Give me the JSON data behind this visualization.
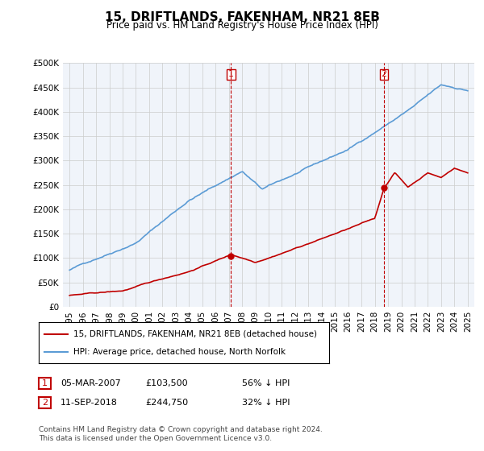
{
  "title": "15, DRIFTLANDS, FAKENHAM, NR21 8EB",
  "subtitle": "Price paid vs. HM Land Registry's House Price Index (HPI)",
  "legend_line1": "15, DRIFTLANDS, FAKENHAM, NR21 8EB (detached house)",
  "legend_line2": "HPI: Average price, detached house, North Norfolk",
  "annotation1_label": "1",
  "annotation1_date": "05-MAR-2007",
  "annotation1_price": "£103,500",
  "annotation1_pct": "56% ↓ HPI",
  "annotation2_label": "2",
  "annotation2_date": "11-SEP-2018",
  "annotation2_price": "£244,750",
  "annotation2_pct": "32% ↓ HPI",
  "footer": "Contains HM Land Registry data © Crown copyright and database right 2024.\nThis data is licensed under the Open Government Licence v3.0.",
  "hpi_color": "#5b9bd5",
  "price_color": "#c00000",
  "annotation_color": "#c00000",
  "bg_color": "#dce6f1",
  "plot_bg": "#f0f4fa",
  "ylim": [
    0,
    500000
  ],
  "yticks": [
    0,
    50000,
    100000,
    150000,
    200000,
    250000,
    300000,
    350000,
    400000,
    450000,
    500000
  ],
  "xlim_start": 1994.5,
  "xlim_end": 2025.5
}
